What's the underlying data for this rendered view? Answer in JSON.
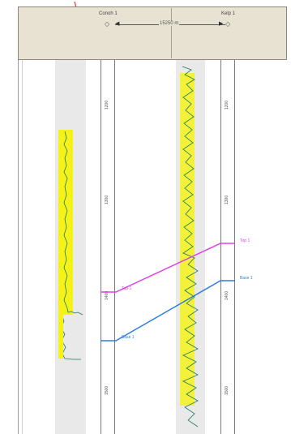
{
  "header": {
    "well_left": "Conoh 1",
    "well_right": "Kelp 1",
    "distance": "15250 m",
    "end_marker": "◇"
  },
  "depth_ticks": {
    "left": [
      "1200",
      "1300",
      "1400",
      "1500"
    ],
    "right": [
      "1200",
      "1300",
      "1400",
      "1500"
    ]
  },
  "markers": [
    {
      "name": "Top 1",
      "color": "#e040e6"
    },
    {
      "name": "Base 1",
      "color": "#2f7fe0"
    }
  ],
  "colors": {
    "log_fill": "#f5f21a",
    "log_curve": "#1e7a5a",
    "annotation": "#e53935"
  }
}
